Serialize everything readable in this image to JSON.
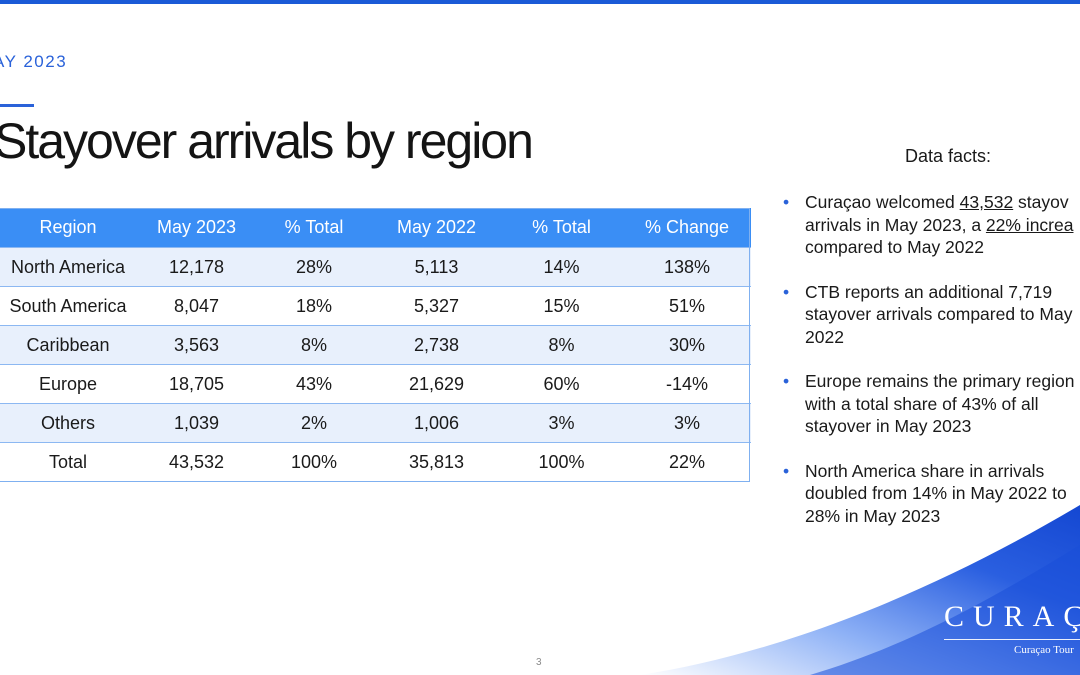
{
  "header": {
    "date_label": "AY 2023",
    "title": "Stayover arrivals by region"
  },
  "table": {
    "columns": [
      "Region",
      "May 2023",
      "% Total",
      "May 2022",
      "% Total",
      "% Change"
    ],
    "rows": [
      [
        "North America",
        "12,178",
        "28%",
        "5,113",
        "14%",
        "138%"
      ],
      [
        "South America",
        "8,047",
        "18%",
        "5,327",
        "15%",
        "51%"
      ],
      [
        "Caribbean",
        "3,563",
        "8%",
        "2,738",
        "8%",
        "30%"
      ],
      [
        "Europe",
        "18,705",
        "43%",
        "21,629",
        "60%",
        "-14%"
      ],
      [
        "Others",
        "1,039",
        "2%",
        "1,006",
        "3%",
        "3%"
      ]
    ],
    "total": [
      "Total",
      "43,532",
      "100%",
      "35,813",
      "100%",
      "22%"
    ]
  },
  "facts": {
    "heading": "Data facts:",
    "items": [
      {
        "l1_a": "Curaçao welcomed ",
        "l1_u1": "43,532",
        "l1_b": " stayov",
        "l2_a": "arrivals in May 2023, a ",
        "l2_u": "22% increa",
        "l3": "compared to May 2022"
      },
      {
        "l1": "CTB reports an additional 7,719",
        "l2": "stayover arrivals compared to May",
        "l3": "2022"
      },
      {
        "l1": "Europe remains the primary region",
        "l2": "with a total share of 43% of all",
        "l3": "stayover in May 2023"
      },
      {
        "l1": "North America share in arrivals",
        "l2": "doubled from 14% in May 2022 to",
        "l3": "28% in May 2023"
      }
    ]
  },
  "footer": {
    "page_number": "3",
    "logo_text": "CURAÇA",
    "logo_subtext": "Curaçao Tour"
  },
  "colors": {
    "accent": "#2a62d9",
    "table_header": "#3a8ef5",
    "row_shade": "#e8f0fc"
  }
}
